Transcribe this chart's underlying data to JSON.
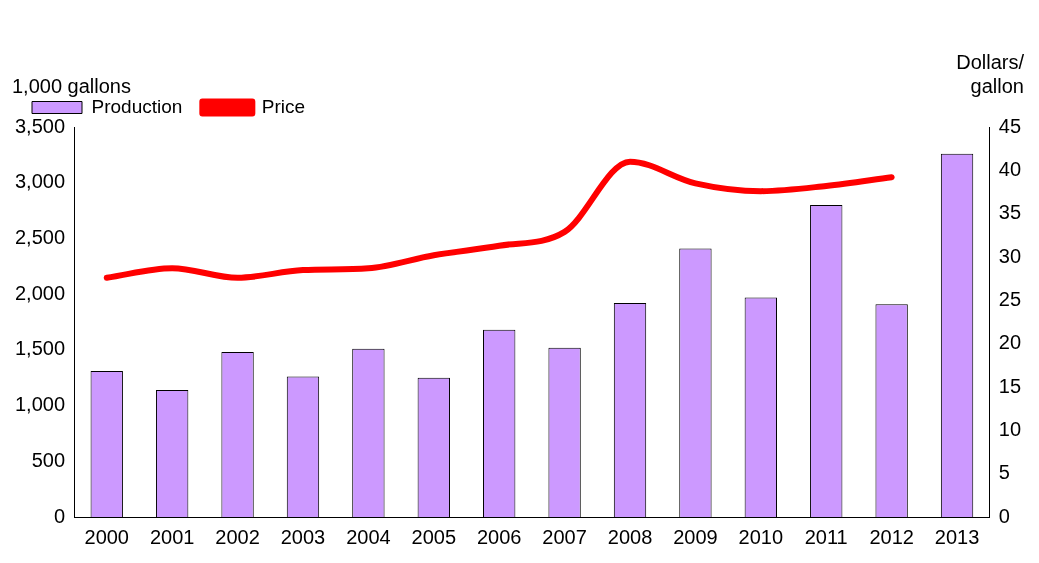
{
  "chart_data": {
    "type": "bar",
    "categories": [
      "2000",
      "2001",
      "2002",
      "2003",
      "2004",
      "2005",
      "2006",
      "2007",
      "2008",
      "2009",
      "2010",
      "2011",
      "2012",
      "2013"
    ],
    "ylabel": "1,000 gallons",
    "y2label": "Dollars/\ngallon",
    "series": [
      {
        "name": "Production",
        "color": "#cc99ff",
        "values": [
          1310,
          1140,
          1480,
          1260,
          1510,
          1250,
          1680,
          1520,
          1920,
          2410,
          1970,
          2800,
          1910,
          3260
        ]
      },
      {
        "name": "Price",
        "type": "line",
        "axis": "y2",
        "color": "#ff0000",
        "values": [
          27.6,
          28.7,
          27.6,
          28.5,
          28.7,
          30.2,
          31.3,
          32.9,
          41.0,
          38.5,
          37.6,
          38.2,
          39.2,
          null
        ]
      }
    ],
    "ylim": [
      0,
      3500
    ],
    "yticks": [
      0,
      500,
      {
        "value": 1000,
        "label": "1,000"
      },
      {
        "value": 1500,
        "label": "1,500"
      },
      {
        "value": 2000,
        "label": "2,000"
      },
      {
        "value": 2500,
        "label": "2,500"
      },
      {
        "value": 3000,
        "label": "3,000"
      },
      {
        "value": 3500,
        "label": "3,500"
      }
    ],
    "y2lim": [
      0,
      45
    ],
    "y2ticks": [
      0,
      5,
      10,
      15,
      20,
      25,
      30,
      35,
      40,
      45
    ],
    "grid": false,
    "legend": "top left",
    "marker": "none",
    "line_style": "solid"
  }
}
